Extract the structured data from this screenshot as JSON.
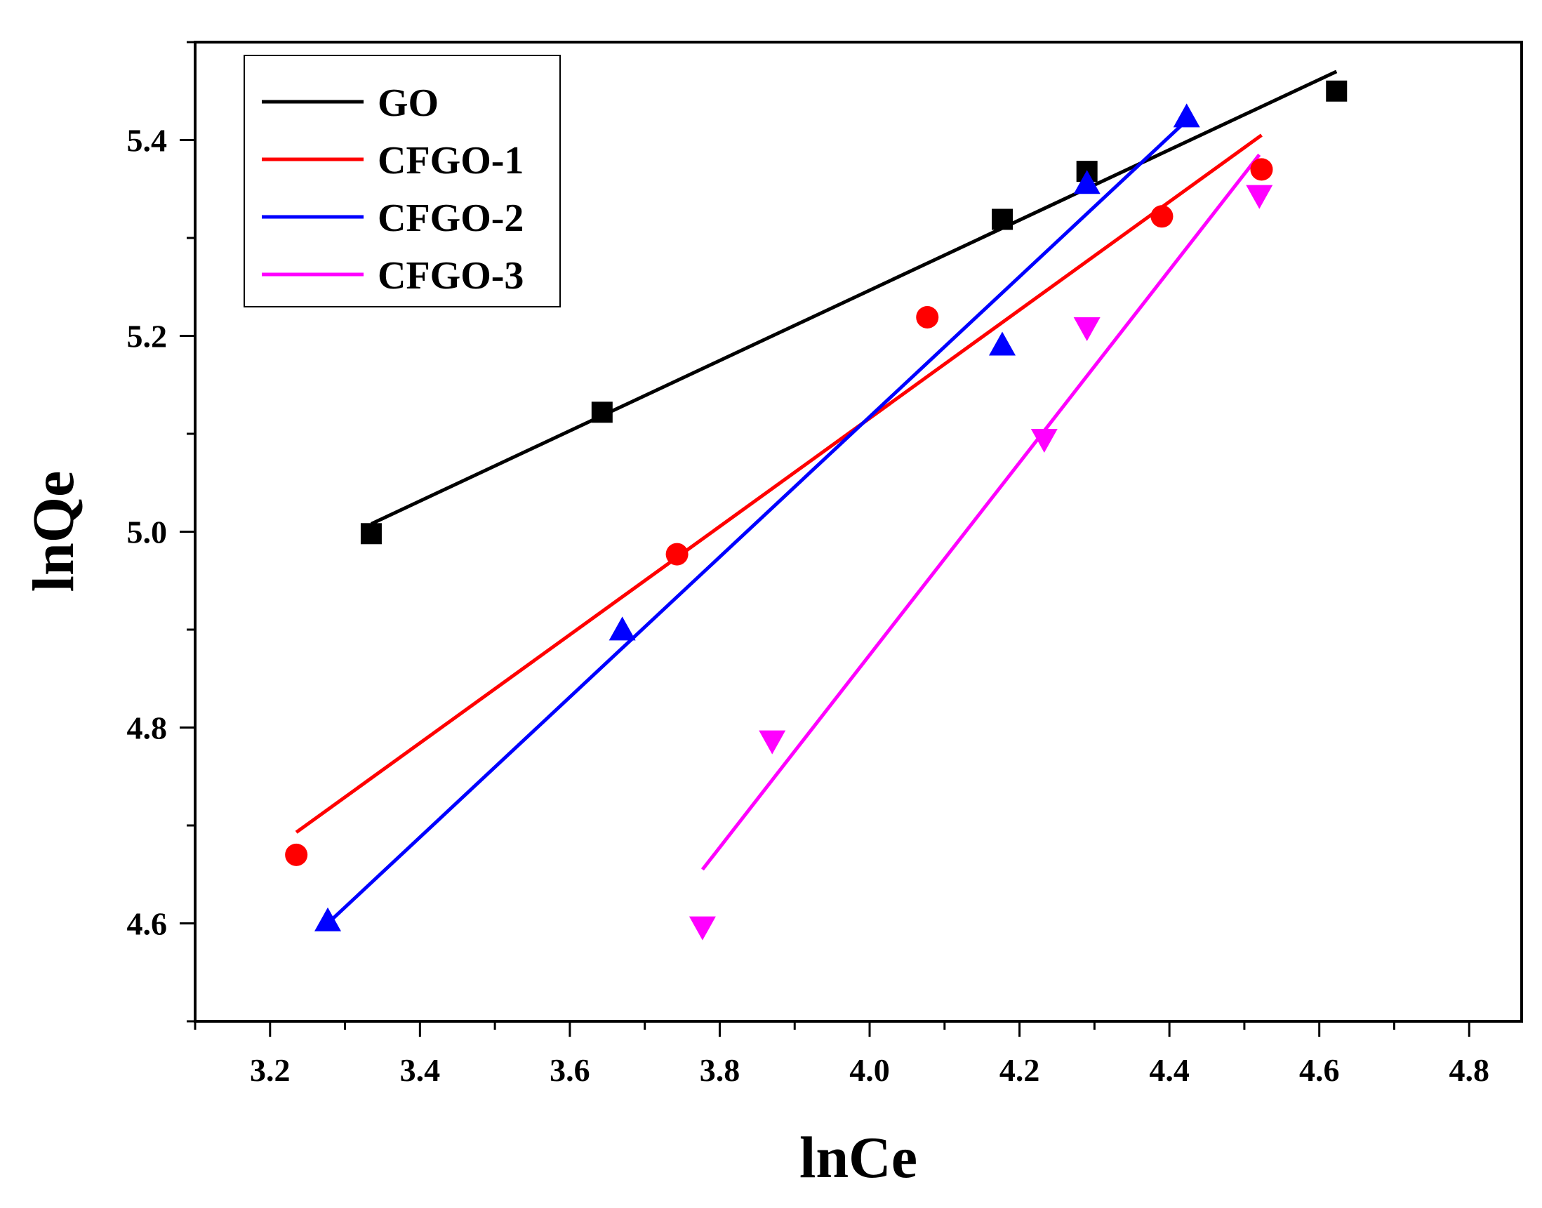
{
  "chart_data": {
    "type": "scatter",
    "title": "",
    "xlabel": "lnCe",
    "ylabel": "lnQe",
    "xlim": [
      3.1,
      4.87
    ],
    "ylim": [
      4.5,
      5.5
    ],
    "grid": false,
    "legend_position": "top-left",
    "x_ticks": [
      3.2,
      3.4,
      3.6,
      3.8,
      4.0,
      4.2,
      4.4,
      4.6,
      4.8
    ],
    "x_tick_labels": [
      "3.2",
      "3.4",
      "3.6",
      "3.8",
      "4.0",
      "4.2",
      "4.4",
      "4.6",
      "4.8"
    ],
    "y_ticks": [
      4.6,
      4.8,
      5.0,
      5.2,
      5.4
    ],
    "y_tick_labels": [
      "4.6",
      "4.8",
      "5.0",
      "5.2",
      "5.4"
    ],
    "series": [
      {
        "name": "GO",
        "color": "#000000",
        "marker": "square",
        "points": [
          [
            3.335,
            4.998
          ],
          [
            3.643,
            5.122
          ],
          [
            4.177,
            5.319
          ],
          [
            4.29,
            5.368
          ],
          [
            4.623,
            5.45
          ]
        ],
        "fit": [
          [
            3.335,
            5.008
          ],
          [
            4.623,
            5.47
          ]
        ]
      },
      {
        "name": "CFGO-1",
        "color": "#ff0000",
        "marker": "circle",
        "points": [
          [
            3.235,
            4.67
          ],
          [
            3.743,
            4.977
          ],
          [
            4.077,
            5.219
          ],
          [
            4.39,
            5.322
          ],
          [
            4.523,
            5.37
          ]
        ],
        "fit": [
          [
            3.235,
            4.693
          ],
          [
            4.523,
            5.405
          ]
        ]
      },
      {
        "name": "CFGO-2",
        "color": "#0000ff",
        "marker": "triangle-up",
        "points": [
          [
            3.277,
            4.602
          ],
          [
            3.67,
            4.899
          ],
          [
            4.177,
            5.19
          ],
          [
            4.29,
            5.355
          ],
          [
            4.423,
            5.423
          ]
        ],
        "fit": [
          [
            3.277,
            4.6
          ],
          [
            4.423,
            5.42
          ]
        ]
      },
      {
        "name": "CFGO-3",
        "color": "#ff00ff",
        "marker": "triangle-down",
        "points": [
          [
            3.777,
            4.597
          ],
          [
            3.87,
            4.787
          ],
          [
            4.233,
            5.095
          ],
          [
            4.29,
            5.209
          ],
          [
            4.52,
            5.344
          ]
        ],
        "fit": [
          [
            3.777,
            4.655
          ],
          [
            4.52,
            5.385
          ]
        ]
      }
    ]
  }
}
